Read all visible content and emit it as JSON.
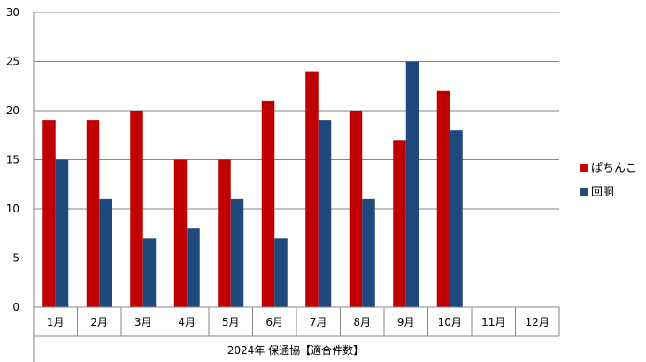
{
  "chart_data": {
    "type": "bar",
    "categories": [
      "1月",
      "2月",
      "3月",
      "4月",
      "5月",
      "6月",
      "7月",
      "8月",
      "9月",
      "10月",
      "11月",
      "12月"
    ],
    "series": [
      {
        "name": "ぱちんこ",
        "color": "#C00000",
        "values": [
          19,
          19,
          20,
          15,
          15,
          21,
          24,
          20,
          17,
          22,
          null,
          null
        ]
      },
      {
        "name": "回胴",
        "color": "#1F497D",
        "values": [
          15,
          11,
          7,
          8,
          11,
          7,
          19,
          11,
          25,
          18,
          null,
          null
        ]
      }
    ],
    "ylim": [
      0,
      30
    ],
    "yticks": [
      0,
      5,
      10,
      15,
      20,
      25,
      30
    ],
    "xlabel": "2024年 保通協【適合件数】",
    "grid": true,
    "legend": "right"
  }
}
